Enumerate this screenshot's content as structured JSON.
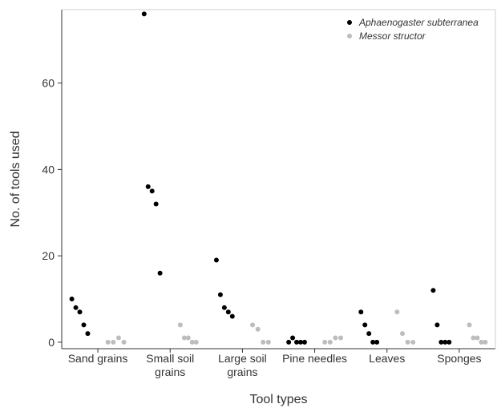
{
  "chart_data": {
    "type": "scatter",
    "title": "",
    "xlabel": "Tool types",
    "ylabel": "No. of tools used",
    "categories": [
      [
        "Sand grains"
      ],
      [
        "Small soil",
        "grains"
      ],
      [
        "Large soil",
        "grains"
      ],
      [
        "Pine needles"
      ],
      [
        "Leaves"
      ],
      [
        "Sponges"
      ]
    ],
    "yticks": [
      0,
      20,
      40,
      60
    ],
    "ylim": [
      -1.5,
      77
    ],
    "grid": false,
    "legend_position": "top-right",
    "series": [
      {
        "name": "Aphaenogaster subterranea",
        "color": "#000000",
        "points": [
          {
            "category": 0,
            "y": [
              10,
              8,
              7,
              4,
              2
            ]
          },
          {
            "category": 1,
            "y": [
              76,
              36,
              35,
              32,
              16
            ]
          },
          {
            "category": 2,
            "y": [
              19,
              11,
              8,
              7,
              6
            ]
          },
          {
            "category": 3,
            "y": [
              0,
              1,
              0,
              0,
              0
            ]
          },
          {
            "category": 4,
            "y": [
              7,
              4,
              2,
              0,
              0
            ]
          },
          {
            "category": 5,
            "y": [
              12,
              4,
              0,
              0,
              0
            ]
          }
        ]
      },
      {
        "name": "Messor structor",
        "color": "#bdbdbd",
        "points": [
          {
            "category": 0,
            "y": [
              0,
              0,
              1,
              0
            ]
          },
          {
            "category": 1,
            "y": [
              4,
              1,
              1,
              0,
              0
            ]
          },
          {
            "category": 2,
            "y": [
              4,
              3,
              0,
              0
            ]
          },
          {
            "category": 3,
            "y": [
              0,
              0,
              1,
              1
            ]
          },
          {
            "category": 4,
            "y": [
              7,
              2,
              0,
              0
            ]
          },
          {
            "category": 5,
            "y": [
              4,
              1,
              1,
              0,
              0
            ]
          }
        ]
      }
    ]
  }
}
